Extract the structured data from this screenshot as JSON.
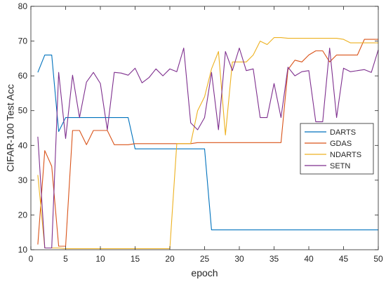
{
  "chart_data": {
    "type": "line",
    "xlabel": "epoch",
    "ylabel": "CIFAR-100 Test Acc",
    "xlim": [
      0,
      50
    ],
    "ylim": [
      10,
      80
    ],
    "xticks": [
      0,
      5,
      10,
      15,
      20,
      25,
      30,
      35,
      40,
      45,
      50
    ],
    "yticks": [
      10,
      20,
      30,
      40,
      50,
      60,
      70,
      80
    ],
    "grid": false,
    "legend_position": "right",
    "series": [
      {
        "name": "DARTS",
        "color": "#0072BD",
        "x": [
          1,
          2,
          3,
          4,
          5,
          6,
          7,
          8,
          9,
          10,
          11,
          12,
          13,
          14,
          15,
          16,
          17,
          18,
          19,
          20,
          21,
          22,
          23,
          24,
          25,
          26,
          27,
          28,
          29,
          30,
          31,
          32,
          33,
          34,
          35,
          36,
          37,
          38,
          39,
          40,
          41,
          42,
          43,
          44,
          45,
          46,
          47,
          48,
          49,
          50
        ],
        "values": [
          61,
          66,
          66,
          44,
          48,
          48,
          48,
          48,
          48,
          48,
          48,
          48,
          48,
          48,
          39,
          39,
          39,
          39,
          39,
          39,
          39,
          39,
          39,
          39,
          39,
          15.7,
          15.7,
          15.7,
          15.7,
          15.7,
          15.7,
          15.7,
          15.7,
          15.7,
          15.7,
          15.7,
          15.7,
          15.7,
          15.7,
          15.7,
          15.7,
          15.7,
          15.7,
          15.7,
          15.7,
          15.7,
          15.7,
          15.7,
          15.7,
          15.7
        ]
      },
      {
        "name": "GDAS",
        "color": "#D95319",
        "x": [
          1,
          2,
          3,
          4,
          5,
          6,
          7,
          8,
          9,
          10,
          11,
          12,
          13,
          14,
          15,
          16,
          17,
          18,
          19,
          20,
          21,
          22,
          23,
          24,
          25,
          26,
          27,
          28,
          29,
          30,
          31,
          32,
          33,
          34,
          35,
          36,
          37,
          38,
          39,
          40,
          41,
          42,
          43,
          44,
          45,
          46,
          47,
          48,
          49,
          50
        ],
        "values": [
          11.5,
          38.5,
          34,
          11,
          11,
          44.3,
          44.3,
          40.2,
          44.3,
          44.3,
          44.3,
          40.2,
          40.2,
          40.2,
          40.5,
          40.5,
          40.5,
          40.5,
          40.5,
          40.5,
          40.5,
          40.5,
          40.5,
          40.8,
          40.8,
          40.8,
          40.8,
          40.8,
          40.8,
          40.8,
          40.8,
          40.8,
          40.8,
          40.8,
          40.8,
          40.8,
          61.8,
          64.5,
          64,
          66,
          67.2,
          67.2,
          64,
          66,
          66,
          66,
          66,
          70.5,
          70.5,
          70.5
        ]
      },
      {
        "name": "NDARTS",
        "color": "#EDB120",
        "x": [
          1,
          2,
          3,
          4,
          5,
          6,
          7,
          8,
          9,
          10,
          11,
          12,
          13,
          14,
          15,
          16,
          17,
          18,
          19,
          20,
          21,
          22,
          23,
          24,
          25,
          26,
          27,
          28,
          29,
          30,
          31,
          32,
          33,
          34,
          35,
          36,
          37,
          38,
          39,
          40,
          41,
          42,
          43,
          44,
          45,
          46,
          47,
          48,
          49,
          50
        ],
        "values": [
          31.5,
          10.5,
          10.5,
          10.5,
          10.3,
          10.3,
          10.3,
          10.3,
          10.3,
          10.3,
          10.3,
          10.3,
          10.3,
          10.3,
          10.3,
          10.3,
          10.3,
          10.3,
          10.3,
          10.3,
          40.5,
          40.5,
          40.5,
          50,
          54,
          62,
          67,
          43,
          64,
          64,
          64,
          66,
          70,
          69,
          71,
          71,
          70.8,
          70.8,
          70.8,
          70.8,
          70.8,
          70.8,
          70.8,
          70.8,
          70.5,
          69.5,
          69.5,
          69.5,
          69.5,
          69.5
        ]
      },
      {
        "name": "SETN",
        "color": "#7E2F8E",
        "x": [
          1,
          2,
          3,
          4,
          5,
          6,
          7,
          8,
          9,
          10,
          11,
          12,
          13,
          14,
          15,
          16,
          17,
          18,
          19,
          20,
          21,
          22,
          23,
          24,
          25,
          26,
          27,
          28,
          29,
          30,
          31,
          32,
          33,
          34,
          35,
          36,
          37,
          38,
          39,
          40,
          41,
          42,
          43,
          44,
          45,
          46,
          47,
          48,
          49,
          50
        ],
        "values": [
          42.5,
          10.5,
          10.5,
          61,
          42,
          60.2,
          48,
          58.2,
          61,
          57.8,
          44.5,
          61,
          60.8,
          60.2,
          62.2,
          58,
          59.5,
          62,
          60,
          62,
          61.2,
          68,
          46.5,
          44.5,
          48,
          61,
          44.5,
          67,
          61.5,
          68,
          61.5,
          62,
          48,
          48,
          57.8,
          48,
          62.5,
          60,
          61.2,
          61.5,
          46.8,
          46.8,
          68,
          48,
          62.2,
          61.2,
          61.5,
          61.8,
          61,
          67.5
        ]
      }
    ]
  }
}
